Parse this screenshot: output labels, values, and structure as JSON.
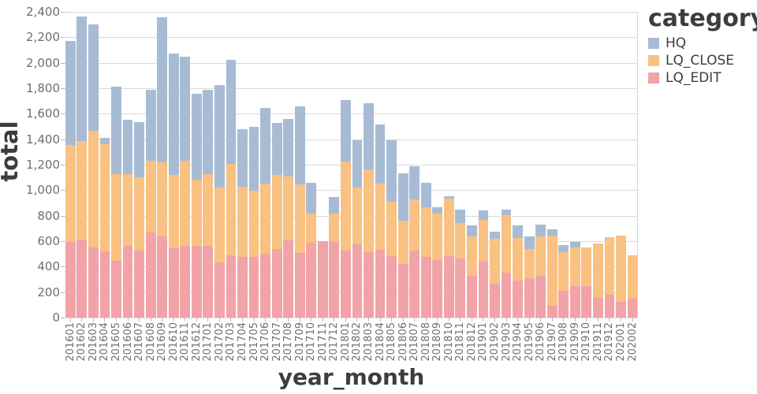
{
  "chart_data": {
    "type": "bar",
    "stacked": true,
    "xlabel": "year_month",
    "ylabel": "total",
    "legend_title": "category",
    "ylim": [
      0,
      2400
    ],
    "ytick_step": 200,
    "grid": true,
    "legend_position": "right-top",
    "colors": {
      "HQ": "#a7bcd4",
      "LQ_CLOSE": "#f9c182",
      "LQ_EDIT": "#f1a3a8"
    },
    "categories": [
      "201601",
      "201602",
      "201603",
      "201604",
      "201605",
      "201606",
      "201607",
      "201608",
      "201609",
      "201610",
      "201611",
      "201612",
      "201701",
      "201702",
      "201703",
      "201704",
      "201705",
      "201706",
      "201707",
      "201708",
      "201709",
      "201710",
      "201711",
      "201712",
      "201801",
      "201802",
      "201803",
      "201804",
      "201805",
      "201806",
      "201807",
      "201808",
      "201809",
      "201810",
      "201811",
      "201812",
      "201901",
      "201902",
      "201903",
      "201904",
      "201905",
      "201906",
      "201907",
      "201908",
      "201909",
      "201910",
      "201911",
      "201912",
      "202001",
      "202002"
    ],
    "series": [
      {
        "name": "LQ_EDIT",
        "stack_order": 0,
        "values": [
          595,
          611,
          551,
          520,
          447,
          561,
          526,
          669,
          640,
          545,
          565,
          561,
          561,
          432,
          489,
          478,
          478,
          499,
          536,
          607,
          509,
          585,
          600,
          595,
          525,
          575,
          515,
          530,
          480,
          420,
          528,
          474,
          454,
          485,
          464,
          330,
          439,
          268,
          350,
          293,
          308,
          325,
          90,
          210,
          246,
          246,
          156,
          180,
          123,
          150
        ]
      },
      {
        "name": "LQ_CLOSE",
        "stack_order": 1,
        "values": [
          758,
          772,
          915,
          842,
          682,
          568,
          576,
          562,
          576,
          573,
          666,
          520,
          564,
          591,
          717,
          547,
          520,
          551,
          582,
          501,
          537,
          230,
          0,
          223,
          700,
          444,
          646,
          520,
          430,
          340,
          400,
          392,
          360,
          449,
          278,
          309,
          328,
          352,
          456,
          331,
          229,
          315,
          553,
          302,
          302,
          307,
          428,
          454,
          522,
          341
        ]
      },
      {
        "name": "HQ",
        "stack_order": 2,
        "values": [
          817,
          982,
          834,
          48,
          686,
          426,
          432,
          559,
          1144,
          952,
          814,
          674,
          660,
          799,
          819,
          455,
          497,
          597,
          410,
          452,
          609,
          241,
          0,
          130,
          485,
          371,
          524,
          465,
          480,
          370,
          262,
          194,
          52,
          19,
          108,
          85,
          73,
          55,
          43,
          99,
          100,
          88,
          50,
          60,
          44,
          0,
          0,
          0,
          0,
          0
        ]
      }
    ],
    "legend_entries": [
      "HQ",
      "LQ_CLOSE",
      "LQ_EDIT"
    ],
    "ytick_labels": [
      "0",
      "200",
      "400",
      "600",
      "800",
      "1,000",
      "1,200",
      "1,400",
      "1,600",
      "1,800",
      "2,000",
      "2,200",
      "2,400"
    ]
  }
}
